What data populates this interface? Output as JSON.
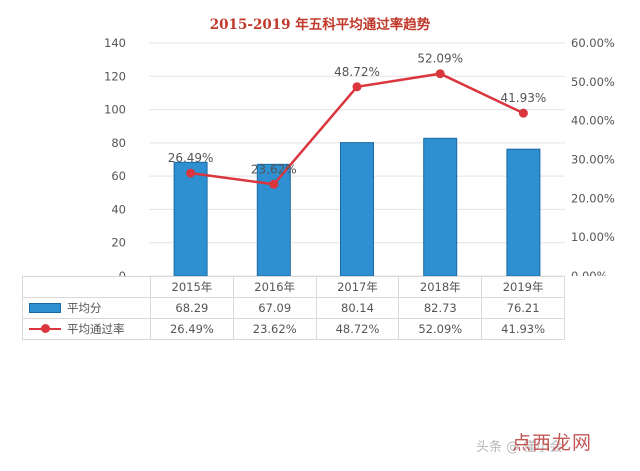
{
  "chart_data": {
    "type": "bar+line",
    "title": "2015-2019 年五科平均通过率趋势",
    "categories": [
      "2015年",
      "2016年",
      "2017年",
      "2018年",
      "2019年"
    ],
    "series": [
      {
        "name": "平均分",
        "type": "bar",
        "axis": "left",
        "values": [
          68.29,
          67.09,
          80.14,
          82.73,
          76.21
        ],
        "labels": [
          "68.29",
          "67.09",
          "80.14",
          "82.73",
          "76.21"
        ],
        "color": "#2e8fd1"
      },
      {
        "name": "平均通过率",
        "type": "line",
        "axis": "right",
        "values": [
          26.49,
          23.62,
          48.72,
          52.09,
          41.93
        ],
        "labels": [
          "26.49%",
          "23.62%",
          "48.72%",
          "52.09%",
          "41.93%"
        ],
        "color": "#d9363e"
      }
    ],
    "left_axis": {
      "ylim": [
        0,
        140
      ],
      "ticks": [
        "0",
        "20",
        "40",
        "60",
        "80",
        "100",
        "120",
        "140"
      ]
    },
    "right_axis": {
      "ylim": [
        0,
        60
      ],
      "ticks": [
        "0.00%",
        "10.00%",
        "20.00%",
        "30.00%",
        "40.00%",
        "50.00%",
        "60.00%"
      ]
    },
    "grid": true,
    "legend": "data-table below"
  },
  "watermark": {
    "logo_text": "点西龙网",
    "mark_text": "头条 @ 懂小会"
  }
}
